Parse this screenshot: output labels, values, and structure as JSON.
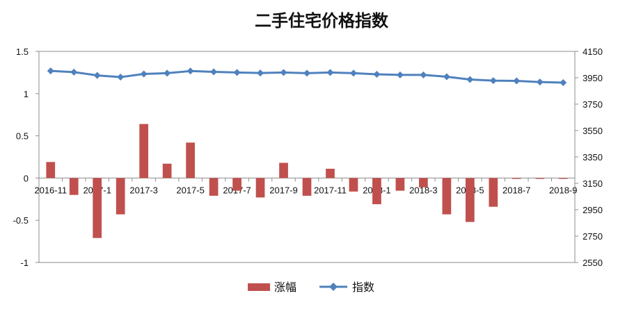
{
  "chart_data": {
    "type": "bar",
    "title": "二手住宅价格指数",
    "categories": [
      "2016-11",
      "2016-12",
      "2017-1",
      "2017-2",
      "2017-3",
      "2017-4",
      "2017-5",
      "2017-6",
      "2017-7",
      "2017-8",
      "2017-9",
      "2017-10",
      "2017-11",
      "2017-12",
      "2018-1",
      "2018-2",
      "2018-3",
      "2018-4",
      "2018-5",
      "2018-6",
      "2018-7",
      "2018-8",
      "2018-9"
    ],
    "x_tick_labels": [
      "2016-11",
      "2017-1",
      "2017-3",
      "2017-5",
      "2017-7",
      "2017-9",
      "2017-11",
      "2018-1",
      "2018-3",
      "2018-5",
      "2018-7",
      "2018-9"
    ],
    "ylim_left": [
      -1,
      1.5
    ],
    "yticks_left": [
      "1.5",
      "1",
      "0.5",
      "0",
      "-0.5",
      "-1"
    ],
    "ylim_right": [
      2550,
      4150
    ],
    "yticks_right": [
      "4150",
      "3950",
      "3750",
      "3550",
      "3350",
      "3150",
      "2950",
      "2750",
      "2550"
    ],
    "series": [
      {
        "name": "涨幅",
        "type": "bar",
        "axis": "left",
        "color": "#c0504d",
        "values": [
          0.19,
          -0.2,
          -0.71,
          -0.43,
          0.64,
          0.17,
          0.42,
          -0.21,
          -0.15,
          -0.23,
          0.18,
          -0.21,
          0.11,
          -0.16,
          -0.31,
          -0.15,
          -0.11,
          -0.43,
          -0.52,
          -0.34,
          -0.01,
          -0.01,
          -0.01
        ]
      },
      {
        "name": "指数",
        "type": "line",
        "axis": "right",
        "color": "#4f81bd",
        "values": [
          4002,
          3993,
          3968,
          3955,
          3979,
          3985,
          4001,
          3995,
          3990,
          3986,
          3990,
          3985,
          3990,
          3985,
          3976,
          3972,
          3972,
          3958,
          3937,
          3928,
          3926,
          3918,
          3913
        ]
      }
    ],
    "legend_position": "bottom"
  }
}
